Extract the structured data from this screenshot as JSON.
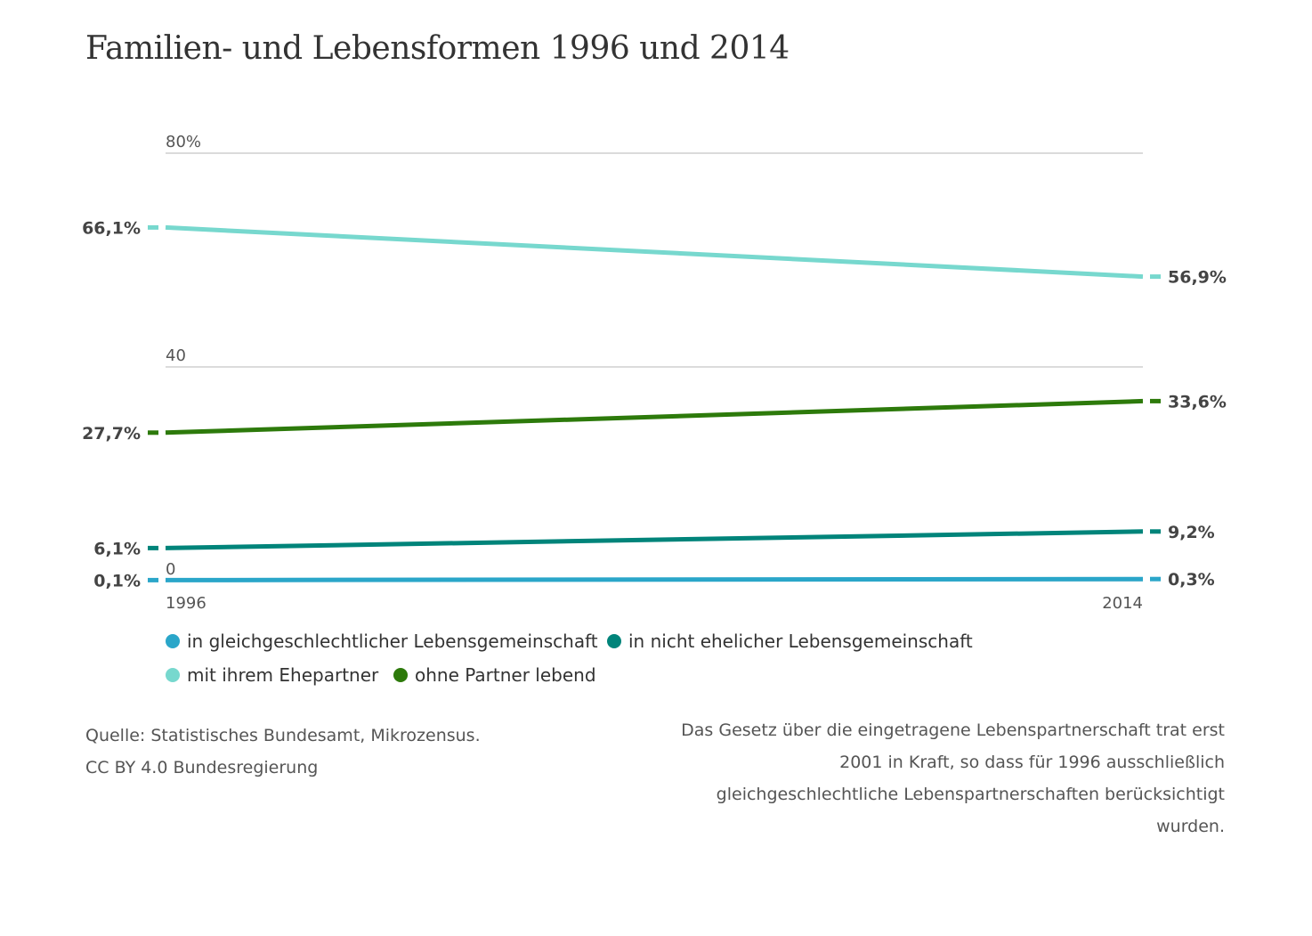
{
  "title": "Familien- und Lebensformen 1996 und 2014",
  "chart_data": {
    "type": "line",
    "x": [
      "1996",
      "2014"
    ],
    "ylim": [
      0,
      80
    ],
    "yticks": [
      "80%",
      "40",
      "0"
    ],
    "series": [
      {
        "name": "in gleichgeschlechtlicher Lebensgemeinschaft",
        "values": [
          0.1,
          0.3
        ],
        "labels": [
          "0,1%",
          "0,3%"
        ],
        "color": "#2aa6c9"
      },
      {
        "name": "in nicht ehelicher Lebensgemeinschaft",
        "values": [
          6.1,
          9.2
        ],
        "labels": [
          "6,1%",
          "9,2%"
        ],
        "color": "#00847a"
      },
      {
        "name": "mit ihrem Ehepartner",
        "values": [
          66.1,
          56.9
        ],
        "labels": [
          "66,1%",
          "56,9%"
        ],
        "color": "#77d8ce"
      },
      {
        "name": "ohne Partner lebend",
        "values": [
          27.7,
          33.6
        ],
        "labels": [
          "27,7%",
          "33,6%"
        ],
        "color": "#2d7a0b"
      }
    ],
    "grid": true
  },
  "legend": [
    {
      "label": "in gleichgeschlechtlicher Lebensgemeinschaft",
      "color": "#2aa6c9"
    },
    {
      "label": "in nicht ehelicher Lebensgemeinschaft",
      "color": "#00847a"
    },
    {
      "label": "mit ihrem Ehepartner",
      "color": "#77d8ce"
    },
    {
      "label": "ohne Partner lebend",
      "color": "#2d7a0b"
    }
  ],
  "source": {
    "line1": "Quelle: Statistisches Bundesamt, Mikrozensus.",
    "line2": "CC BY 4.0 Bundesregierung"
  },
  "note": "Das Gesetz über die eingetragene Lebenspartnerschaft trat erst 2001 in Kraft, so dass für 1996 ausschließlich gleichgeschlechtliche Lebenspartnerschaften berücksichtigt wurden."
}
